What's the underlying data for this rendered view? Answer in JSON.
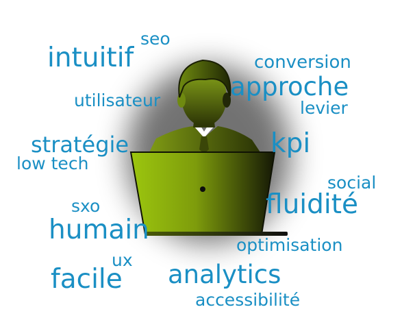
{
  "word_cloud": {
    "words": [
      "seo",
      "intuitif",
      "conversion",
      "utilisateur",
      "approche",
      "levier",
      "stratégie",
      "kpi",
      "low tech",
      "social",
      "sxo",
      "fluidité",
      "humain",
      "optimisation",
      "ux",
      "facile",
      "analytics",
      "accessibilité"
    ]
  },
  "colors": {
    "word_text": "#1a8fc4",
    "figure_green": "#8aa81a",
    "figure_dark": "#1a1a1a",
    "laptop_green": "#9cc60e",
    "background": "#ffffff"
  },
  "icons": [
    "person-at-laptop-icon"
  ]
}
